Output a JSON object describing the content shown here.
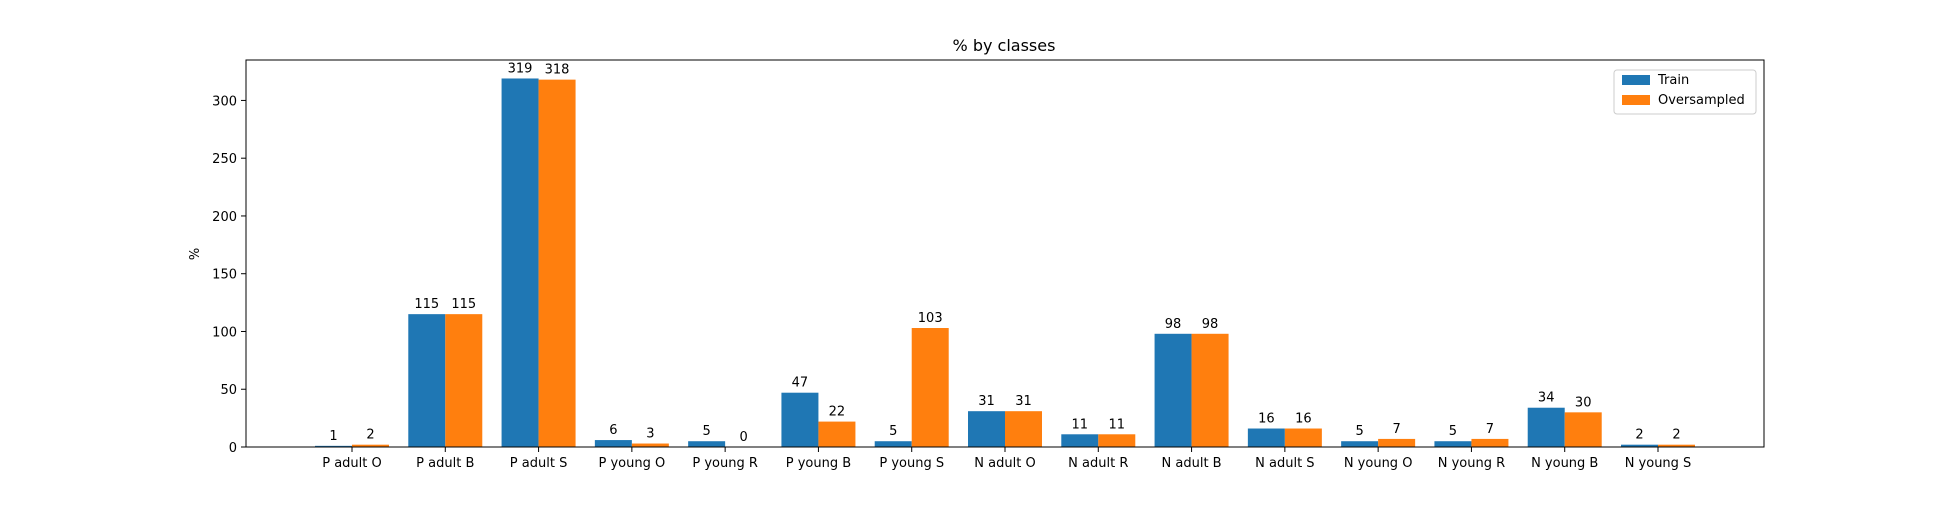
{
  "chart_data": {
    "type": "bar",
    "title": "% by classes",
    "xlabel": "",
    "ylabel": "%",
    "ylim": [
      0,
      335
    ],
    "yticks": [
      0,
      50,
      100,
      150,
      200,
      250,
      300
    ],
    "grid": false,
    "legend_position": "top-right",
    "categories": [
      "P adult O",
      "P adult B",
      "P adult S",
      "P young O",
      "P young R",
      "P young B",
      "P young S",
      "N adult O",
      "N adult R",
      "N adult B",
      "N adult S",
      "N young O",
      "N young R",
      "N young B",
      "N young S"
    ],
    "series": [
      {
        "name": "Train",
        "color": "#1f77b4",
        "values": [
          1,
          115,
          319,
          6,
          5,
          47,
          5,
          31,
          11,
          98,
          16,
          5,
          5,
          34,
          2
        ]
      },
      {
        "name": "Oversampled",
        "color": "#ff7f0e",
        "values": [
          2,
          115,
          318,
          3,
          0,
          22,
          103,
          31,
          11,
          98,
          16,
          7,
          7,
          30,
          2
        ]
      }
    ]
  }
}
